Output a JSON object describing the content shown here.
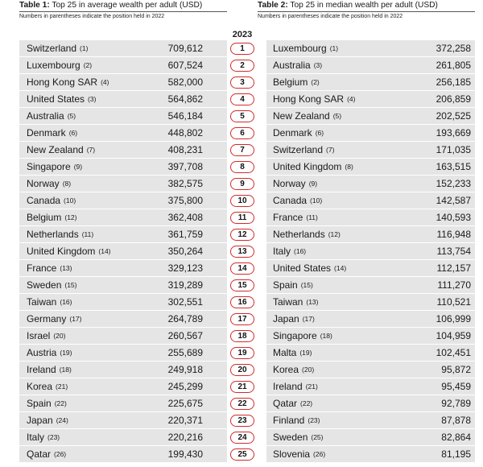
{
  "table1": {
    "label": "Table 1:",
    "title": " Top 25 in average wealth per adult (USD)",
    "note": "Numbers in parentheses indicate the position held in 2022",
    "rows": [
      {
        "country": "Switzerland",
        "prev": "(1)",
        "value": "709,612"
      },
      {
        "country": "Luxembourg",
        "prev": "(2)",
        "value": "607,524"
      },
      {
        "country": "Hong Kong SAR",
        "prev": "(4)",
        "value": "582,000"
      },
      {
        "country": "United States",
        "prev": "(3)",
        "value": "564,862"
      },
      {
        "country": "Australia",
        "prev": "(5)",
        "value": "546,184"
      },
      {
        "country": "Denmark",
        "prev": "(6)",
        "value": "448,802"
      },
      {
        "country": "New Zealand",
        "prev": "(7)",
        "value": "408,231"
      },
      {
        "country": "Singapore",
        "prev": "(9)",
        "value": "397,708"
      },
      {
        "country": "Norway",
        "prev": "(8)",
        "value": "382,575"
      },
      {
        "country": "Canada",
        "prev": "(10)",
        "value": "375,800"
      },
      {
        "country": "Belgium",
        "prev": "(12)",
        "value": "362,408"
      },
      {
        "country": "Netherlands",
        "prev": "(11)",
        "value": "361,759"
      },
      {
        "country": "United Kingdom",
        "prev": "(14)",
        "value": "350,264"
      },
      {
        "country": "France",
        "prev": "(13)",
        "value": "329,123"
      },
      {
        "country": "Sweden",
        "prev": "(15)",
        "value": "319,289"
      },
      {
        "country": "Taiwan",
        "prev": "(16)",
        "value": "302,551"
      },
      {
        "country": "Germany",
        "prev": "(17)",
        "value": "264,789"
      },
      {
        "country": "Israel",
        "prev": "(20)",
        "value": "260,567"
      },
      {
        "country": "Austria",
        "prev": "(19)",
        "value": "255,689"
      },
      {
        "country": "Ireland",
        "prev": "(18)",
        "value": "249,918"
      },
      {
        "country": "Korea",
        "prev": "(21)",
        "value": "245,299"
      },
      {
        "country": "Spain",
        "prev": "(22)",
        "value": "225,675"
      },
      {
        "country": "Japan",
        "prev": "(24)",
        "value": "220,371"
      },
      {
        "country": "Italy",
        "prev": "(23)",
        "value": "220,216"
      },
      {
        "country": "Qatar",
        "prev": "(26)",
        "value": "199,430"
      }
    ]
  },
  "year_label": "2023",
  "ranks": [
    "1",
    "2",
    "3",
    "4",
    "5",
    "6",
    "7",
    "8",
    "9",
    "10",
    "11",
    "12",
    "13",
    "14",
    "15",
    "16",
    "17",
    "18",
    "19",
    "20",
    "21",
    "22",
    "23",
    "24",
    "25"
  ],
  "table2": {
    "label": "Table 2:",
    "title": " Top 25 in median wealth per adult (USD)",
    "note": "Numbers in parentheses indicate the position held in 2022",
    "rows": [
      {
        "country": "Luxembourg",
        "prev": "(1)",
        "value": "372,258"
      },
      {
        "country": "Australia",
        "prev": "(3)",
        "value": "261,805"
      },
      {
        "country": "Belgium",
        "prev": "(2)",
        "value": "256,185"
      },
      {
        "country": "Hong Kong SAR",
        "prev": "(4)",
        "value": "206,859"
      },
      {
        "country": "New Zealand",
        "prev": "(5)",
        "value": "202,525"
      },
      {
        "country": "Denmark",
        "prev": "(6)",
        "value": "193,669"
      },
      {
        "country": "Switzerland",
        "prev": "(7)",
        "value": "171,035"
      },
      {
        "country": "United Kingdom",
        "prev": "(8)",
        "value": "163,515"
      },
      {
        "country": "Norway",
        "prev": "(9)",
        "value": "152,233"
      },
      {
        "country": "Canada",
        "prev": "(10)",
        "value": "142,587"
      },
      {
        "country": "France",
        "prev": "(11)",
        "value": "140,593"
      },
      {
        "country": "Netherlands",
        "prev": "(12)",
        "value": "116,948"
      },
      {
        "country": "Italy",
        "prev": "(16)",
        "value": "113,754"
      },
      {
        "country": "United States",
        "prev": "(14)",
        "value": "112,157"
      },
      {
        "country": "Spain",
        "prev": "(15)",
        "value": "111,270"
      },
      {
        "country": "Taiwan",
        "prev": "(13)",
        "value": "110,521"
      },
      {
        "country": "Japan",
        "prev": "(17)",
        "value": "106,999"
      },
      {
        "country": "Singapore",
        "prev": "(18)",
        "value": "104,959"
      },
      {
        "country": "Malta",
        "prev": "(19)",
        "value": "102,451"
      },
      {
        "country": "Korea",
        "prev": "(20)",
        "value": "95,872"
      },
      {
        "country": "Ireland",
        "prev": "(21)",
        "value": "95,459"
      },
      {
        "country": "Qatar",
        "prev": "(22)",
        "value": "92,789"
      },
      {
        "country": "Finland",
        "prev": "(23)",
        "value": "87,878"
      },
      {
        "country": "Sweden",
        "prev": "(25)",
        "value": "82,864"
      },
      {
        "country": "Slovenia",
        "prev": "(26)",
        "value": "81,195"
      }
    ]
  },
  "colors": {
    "row_background": "#e5e5e5",
    "rank_outline": "#d22a2a"
  }
}
